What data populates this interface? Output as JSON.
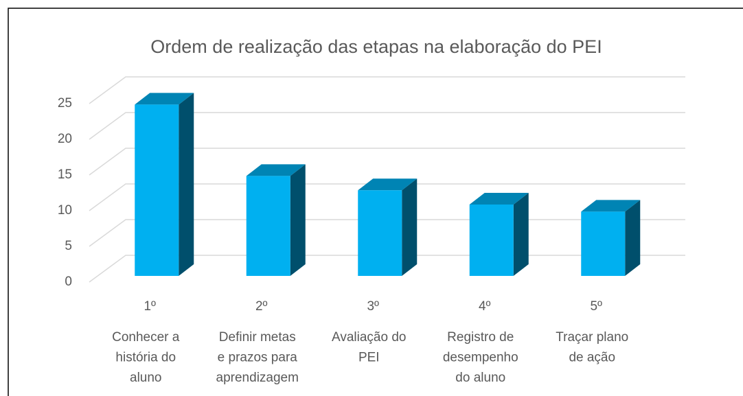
{
  "chart_data": {
    "type": "bar3d",
    "title": "Ordem de realização das etapas na elaboração do PEI",
    "categories": [
      "1º",
      "2º",
      "3º",
      "4º",
      "5º"
    ],
    "category_descriptions": [
      [
        "Conhecer a",
        "história do",
        "aluno"
      ],
      [
        "Definir metas",
        "e prazos para",
        "aprendizagem"
      ],
      [
        "Avaliação do",
        "PEI"
      ],
      [
        "Registro de",
        "desempenho",
        "do aluno"
      ],
      [
        "Traçar plano",
        "de ação"
      ]
    ],
    "values": [
      24,
      14,
      12,
      10,
      9
    ],
    "color": "#00b0f0",
    "ylim": [
      0,
      25
    ],
    "yticks": [
      0,
      5,
      10,
      15,
      20,
      25
    ],
    "grid": true
  }
}
